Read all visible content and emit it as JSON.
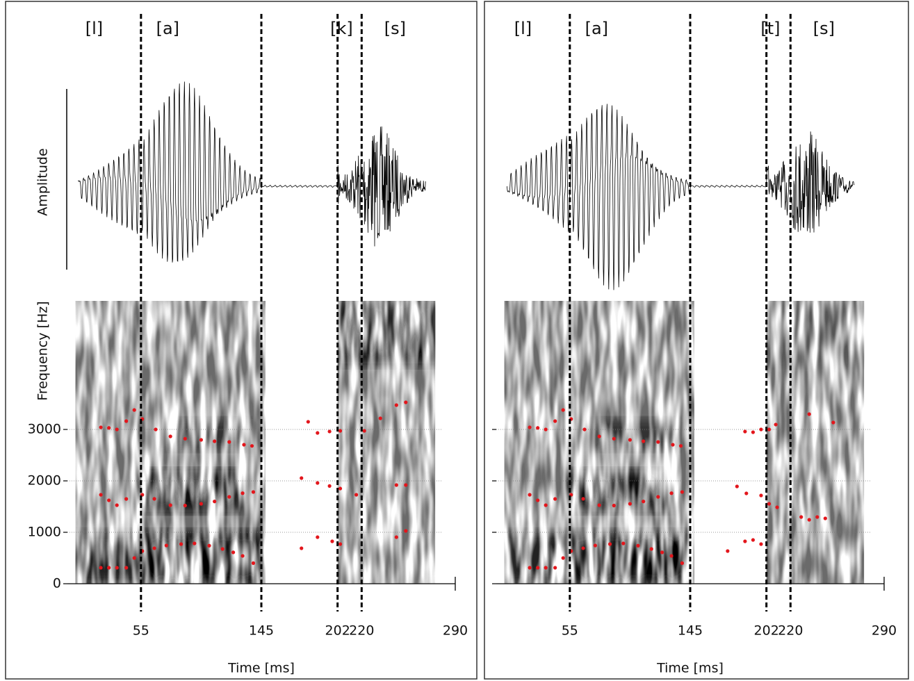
{
  "chart_data": [
    {
      "type": "waveform_spectrogram",
      "segments": [
        "[l]",
        "[a]",
        "[k]",
        "[s]"
      ],
      "boundaries": [
        55,
        145,
        202,
        220
      ],
      "amplitude_label": "Amplitude",
      "ylabel": "Frequency [Hz]",
      "xlabel": "Time [ms]",
      "xlim": [
        0,
        290
      ],
      "xticks": [
        55,
        145,
        202,
        220,
        290
      ],
      "ylim": [
        0,
        5500
      ],
      "yticks": [
        0,
        1000,
        2000,
        3000
      ],
      "ytick_labels": true,
      "grid": true,
      "formant_color": "#e3161c",
      "formants": [
        {
          "x": [
            25,
            31,
            37,
            44,
            50,
            56,
            65,
            74,
            85,
            95,
            106,
            116,
            124,
            131,
            139,
            175,
            187,
            198,
            204,
            246,
            253
          ],
          "y": [
            311,
            311,
            311,
            311,
            500,
            635,
            690,
            743,
            770,
            784,
            740,
            676,
            610,
            541,
            400,
            689,
            905,
            824,
            770,
            905,
            1027
          ]
        },
        {
          "x": [
            25,
            31,
            37,
            44,
            56,
            65,
            77,
            88,
            100,
            110,
            121,
            131,
            139,
            175,
            187,
            196,
            204,
            216,
            246,
            253
          ],
          "y": [
            1730,
            1622,
            1527,
            1649,
            1730,
            1650,
            1527,
            1520,
            1554,
            1600,
            1689,
            1760,
            1784,
            2054,
            1959,
            1900,
            1851,
            1730,
            1919,
            1919
          ]
        },
        {
          "x": [
            25,
            31,
            37,
            44,
            50,
            56,
            66,
            77,
            88,
            100,
            110,
            121,
            132,
            138,
            180,
            187,
            196,
            204,
            222,
            234,
            246,
            253
          ],
          "y": [
            3041,
            3030,
            3000,
            3162,
            3378,
            3203,
            3000,
            2865,
            2820,
            2797,
            2770,
            2757,
            2703,
            2680,
            3149,
            2932,
            2960,
            2973,
            2973,
            3216,
            3473,
            3527
          ]
        }
      ]
    },
    {
      "type": "waveform_spectrogram",
      "segments": [
        "[l]",
        "[a]",
        "[t]",
        "[s]"
      ],
      "boundaries": [
        55,
        145,
        202,
        220
      ],
      "xlabel": "Time [ms]",
      "xlim": [
        0,
        290
      ],
      "xticks": [
        55,
        145,
        202,
        220,
        290
      ],
      "ylim": [
        0,
        5500
      ],
      "yticks": [
        0,
        1000,
        2000,
        3000
      ],
      "ytick_labels": false,
      "grid": true,
      "formant_color": "#e3161c",
      "formants": [
        {
          "x": [
            25,
            31,
            37,
            44,
            50,
            56,
            65,
            74,
            85,
            95,
            106,
            116,
            124,
            131,
            139,
            173,
            186,
            192,
            198
          ],
          "y": [
            311,
            311,
            311,
            311,
            500,
            635,
            690,
            743,
            770,
            784,
            740,
            676,
            610,
            541,
            400,
            635,
            824,
            851,
            770
          ]
        },
        {
          "x": [
            25,
            31,
            37,
            44,
            56,
            65,
            77,
            88,
            100,
            110,
            121,
            131,
            139,
            180,
            187,
            198,
            204,
            210,
            228,
            234,
            240,
            246
          ],
          "y": [
            1730,
            1622,
            1527,
            1649,
            1730,
            1650,
            1527,
            1520,
            1554,
            1600,
            1689,
            1760,
            1784,
            1892,
            1757,
            1716,
            1554,
            1486,
            1297,
            1243,
            1297,
            1270
          ]
        },
        {
          "x": [
            25,
            31,
            37,
            44,
            50,
            56,
            66,
            77,
            88,
            100,
            110,
            121,
            132,
            138,
            186,
            192,
            198,
            204,
            209,
            234,
            252
          ],
          "y": [
            3041,
            3030,
            3000,
            3162,
            3378,
            3203,
            3000,
            2865,
            2820,
            2797,
            2770,
            2757,
            2703,
            2680,
            2959,
            2946,
            3000,
            3000,
            3095,
            3297,
            3135
          ]
        }
      ]
    }
  ]
}
